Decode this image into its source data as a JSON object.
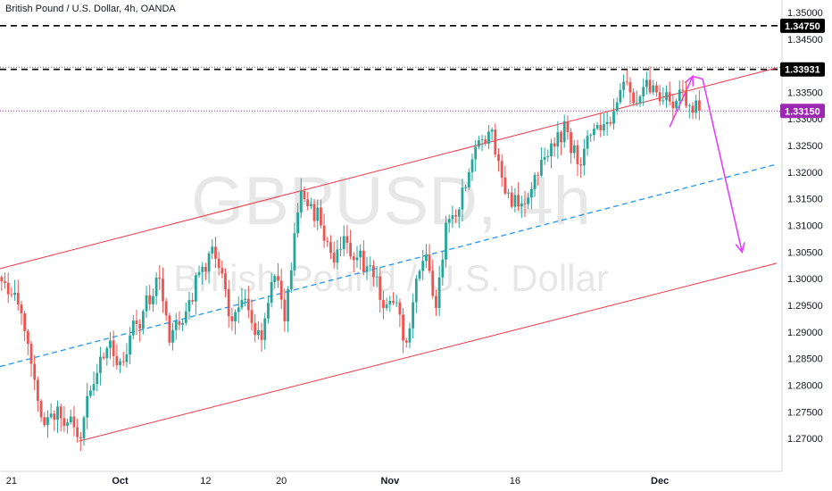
{
  "header": {
    "title": "British Pound / U.S. Dollar, 4h, OANDA"
  },
  "watermark": {
    "symbol": "GBPUSD, 4h",
    "name": "British Pound / U.S. Dollar"
  },
  "colors": {
    "up": "#26a69a",
    "down": "#ef5350",
    "channel": "#f23645",
    "midline": "#2196f3",
    "arrow": "#e040fb",
    "current_price": "#9c27b0",
    "level_tag": "#000000"
  },
  "chart_data": {
    "type": "candlestick",
    "symbol": "GBPUSD",
    "timeframe": "4h",
    "source": "OANDA",
    "ylim": [
      1.2665,
      1.3515
    ],
    "y_ticks": [
      "1.27000",
      "1.27500",
      "1.28000",
      "1.28500",
      "1.29000",
      "1.29500",
      "1.30000",
      "1.30500",
      "1.31000",
      "1.31500",
      "1.32000",
      "1.32500",
      "1.33000",
      "1.33500",
      "1.34000",
      "1.34500",
      "1.35000"
    ],
    "x_ticks": [
      {
        "label": "21",
        "bar": 3,
        "bold": false
      },
      {
        "label": "Oct",
        "bar": 36,
        "bold": true
      },
      {
        "label": "12",
        "bar": 62,
        "bold": false
      },
      {
        "label": "20",
        "bar": 85,
        "bold": false
      },
      {
        "label": "Nov",
        "bar": 118,
        "bold": true
      },
      {
        "label": "16",
        "bar": 156,
        "bold": false
      },
      {
        "label": "Dec",
        "bar": 200,
        "bold": true
      }
    ],
    "bar_count_visible": 236,
    "anchors": [
      [
        0,
        1.2995
      ],
      [
        6,
        1.2935
      ],
      [
        10,
        1.281
      ],
      [
        13,
        1.2725
      ],
      [
        17,
        1.276
      ],
      [
        20,
        1.273
      ],
      [
        24,
        1.27
      ],
      [
        27,
        1.279
      ],
      [
        32,
        1.287
      ],
      [
        36,
        1.2845
      ],
      [
        41,
        1.2915
      ],
      [
        48,
        1.3
      ],
      [
        51,
        1.288
      ],
      [
        57,
        1.296
      ],
      [
        64,
        1.306
      ],
      [
        67,
        1.301
      ],
      [
        70,
        1.292
      ],
      [
        73,
        1.296
      ],
      [
        79,
        1.2885
      ],
      [
        83,
        1.3005
      ],
      [
        86,
        1.292
      ],
      [
        91,
        1.3165
      ],
      [
        94,
        1.314
      ],
      [
        97,
        1.31
      ],
      [
        101,
        1.303
      ],
      [
        104,
        1.308
      ],
      [
        108,
        1.304
      ],
      [
        112,
        1.3025
      ],
      [
        116,
        1.2945
      ],
      [
        119,
        1.2955
      ],
      [
        123,
        1.288
      ],
      [
        126,
        1.3
      ],
      [
        129,
        1.3045
      ],
      [
        132,
        1.2945
      ],
      [
        135,
        1.3105
      ],
      [
        139,
        1.313
      ],
      [
        142,
        1.32
      ],
      [
        145,
        1.326
      ],
      [
        149,
        1.328
      ],
      [
        152,
        1.319
      ],
      [
        155,
        1.3135
      ],
      [
        159,
        1.314
      ],
      [
        162,
        1.3195
      ],
      [
        166,
        1.323
      ],
      [
        169,
        1.3275
      ],
      [
        172,
        1.3275
      ],
      [
        175,
        1.3215
      ],
      [
        179,
        1.327
      ],
      [
        183,
        1.329
      ],
      [
        186,
        1.3315
      ],
      [
        189,
        1.337
      ],
      [
        191,
        1.335
      ],
      [
        193,
        1.333
      ],
      [
        195,
        1.336
      ],
      [
        197,
        1.335
      ],
      [
        199,
        1.335
      ],
      [
        201,
        1.3335
      ],
      [
        204,
        1.332
      ],
      [
        206,
        1.3355
      ],
      [
        209,
        1.3325
      ],
      [
        212,
        1.3315
      ]
    ],
    "current_price": 1.3315,
    "levels": [
      {
        "price": 1.3475,
        "label": "1.34750",
        "style": "dashed"
      },
      {
        "price": 1.33931,
        "label": "1.33931",
        "style": "dashed"
      }
    ],
    "current_price_label": "1.33150",
    "channel_upper": [
      [
        0,
        1.3019
      ],
      [
        236,
        1.3396
      ]
    ],
    "channel_lower": [
      [
        24,
        1.2695
      ],
      [
        236,
        1.3029
      ]
    ],
    "channel_mid": [
      [
        0,
        1.2835
      ],
      [
        236,
        1.3215
      ]
    ],
    "projection_path": [
      [
        203,
        1.3285
      ],
      [
        210,
        1.338
      ],
      [
        213,
        1.3375
      ],
      [
        225,
        1.305
      ]
    ]
  }
}
